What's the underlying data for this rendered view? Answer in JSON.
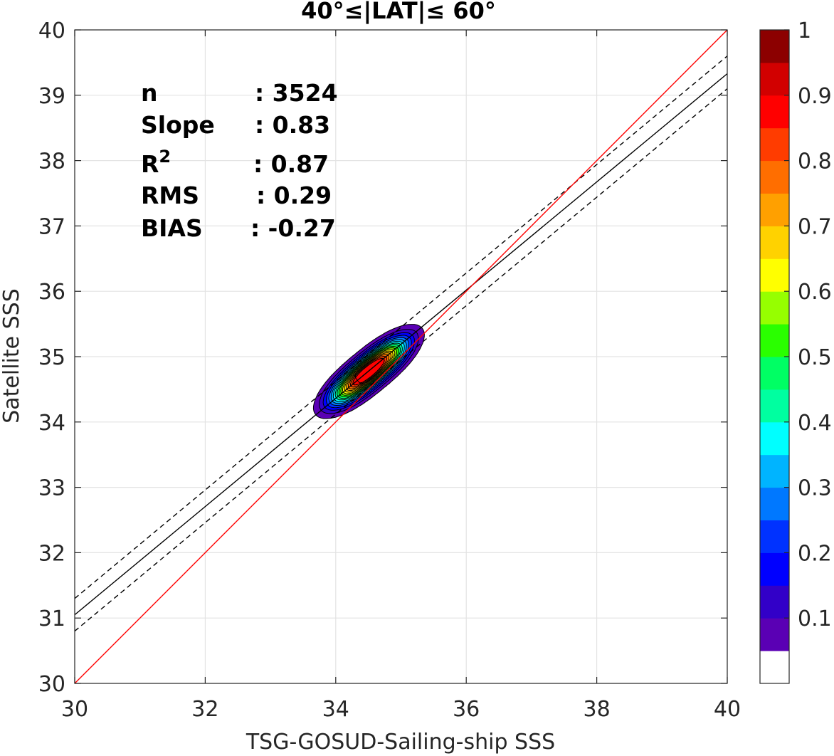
{
  "chart_data": {
    "type": "contour",
    "title": "40°≤|LAT|≤ 60°",
    "xlabel": "TSG-GOSUD-Sailing-ship SSS",
    "ylabel": "Satellite SSS",
    "xlim": [
      30,
      40
    ],
    "ylim": [
      30,
      40
    ],
    "xticks": [
      30,
      32,
      34,
      36,
      38,
      40
    ],
    "yticks": [
      30,
      31,
      32,
      33,
      34,
      35,
      36,
      37,
      38,
      39,
      40
    ],
    "grid": true,
    "stats": [
      {
        "label": "n",
        "value": ": 3524"
      },
      {
        "label": "Slope",
        "value": ": 0.83"
      },
      {
        "label": "R",
        "sup": "2",
        "value": ": 0.87"
      },
      {
        "label": "RMS",
        "value": ": 0.29"
      },
      {
        "label": "BIAS",
        "value": ": -0.27"
      }
    ],
    "lines": {
      "identity": {
        "x": [
          30,
          40
        ],
        "y": [
          30,
          40
        ],
        "color": "#ff0000"
      },
      "fit": {
        "x": [
          30,
          40
        ],
        "y": [
          31.05,
          39.33
        ],
        "color": "#000000"
      },
      "fit_upper": {
        "x": [
          30,
          40
        ],
        "y": [
          31.3,
          39.6
        ],
        "color": "#000000",
        "dash": true
      },
      "fit_lower": {
        "x": [
          30,
          40
        ],
        "y": [
          30.8,
          39.1
        ],
        "color": "#000000",
        "dash": true
      }
    },
    "density": {
      "description_levels": [
        0.05,
        0.1,
        0.15,
        0.2,
        0.25,
        0.3,
        0.35,
        0.4,
        0.45,
        0.5,
        0.55,
        0.6,
        0.65,
        0.7,
        0.75,
        0.8,
        0.85,
        0.9,
        0.95
      ],
      "peaks": [
        {
          "x": 34.3,
          "y": 34.6,
          "value": 1.0
        },
        {
          "x": 34.72,
          "y": 34.95,
          "value": 0.97
        }
      ],
      "outer_extent": {
        "x": [
          33.9,
          35.35
        ],
        "y": [
          34.15,
          35.55
        ]
      }
    },
    "colorbar": {
      "ticks": [
        "0.1",
        "0.2",
        "0.3",
        "0.4",
        "0.5",
        "0.6",
        "0.7",
        "0.8",
        "0.9",
        "1"
      ],
      "tick_values": [
        0.1,
        0.2,
        0.3,
        0.4,
        0.5,
        0.6,
        0.7,
        0.8,
        0.9,
        1.0
      ],
      "range": [
        0,
        1
      ],
      "colors": [
        "#ffffff",
        "#5a00b4",
        "#3200c8",
        "#0000ff",
        "#0032ff",
        "#0078ff",
        "#00b4ff",
        "#00ffff",
        "#00ffa0",
        "#00ff64",
        "#2aff00",
        "#96ff00",
        "#ffff00",
        "#ffd200",
        "#ffa000",
        "#ff6e00",
        "#ff3c00",
        "#ff0000",
        "#d20000",
        "#8c0000"
      ]
    }
  }
}
